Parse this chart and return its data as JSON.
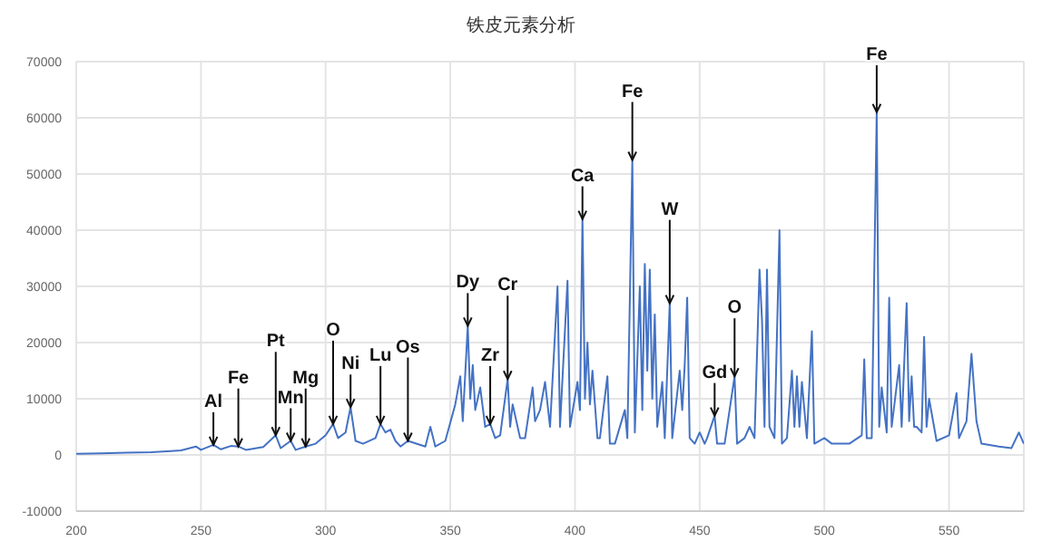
{
  "chart_data": {
    "type": "line",
    "title": "铁皮元素分析",
    "color": "#4472c4",
    "grid": true,
    "marker": "none",
    "line_style": "solid",
    "xlim": [
      200,
      580
    ],
    "xticks": [
      200,
      250,
      300,
      350,
      400,
      450,
      500,
      550
    ],
    "ylim": [
      -10000,
      70000
    ],
    "yticks": [
      -10000,
      0,
      10000,
      20000,
      30000,
      40000,
      50000,
      60000,
      70000
    ],
    "x": [
      200,
      210,
      220,
      230,
      238,
      242,
      248,
      250,
      255,
      258,
      262,
      265,
      268,
      275,
      280,
      282,
      286,
      288,
      292,
      296,
      300,
      303,
      305,
      308,
      310,
      312,
      315,
      320,
      322,
      324,
      326,
      328,
      330,
      333,
      340,
      342,
      344,
      348,
      352,
      354,
      355,
      357,
      358,
      359,
      360,
      362,
      364,
      366,
      368,
      370,
      373,
      374,
      375,
      378,
      380,
      383,
      384,
      386,
      388,
      390,
      393,
      394,
      397,
      398,
      401,
      402,
      403,
      404,
      405,
      406,
      407,
      409,
      410,
      413,
      414,
      416,
      420,
      421,
      423,
      424,
      426,
      427,
      428,
      429,
      430,
      431,
      432,
      433,
      435,
      436,
      438,
      439,
      442,
      443,
      444,
      445,
      446,
      448,
      450,
      452,
      453,
      456,
      457,
      460,
      464,
      465,
      468,
      470,
      472,
      474,
      475,
      476,
      477,
      478,
      480,
      482,
      483,
      485,
      487,
      488,
      489,
      490,
      491,
      493,
      495,
      496,
      500,
      503,
      505,
      510,
      515,
      516,
      517,
      519,
      521,
      522,
      523,
      525,
      526,
      527,
      530,
      531,
      533,
      534,
      535,
      536,
      537,
      539,
      540,
      541,
      542,
      545,
      550,
      553,
      554,
      557,
      559,
      561,
      563,
      570,
      575,
      578,
      580
    ],
    "values": [
      200,
      300,
      400,
      500,
      700,
      800,
      1500,
      900,
      1800,
      1000,
      1600,
      1500,
      900,
      1400,
      3500,
      1200,
      2500,
      900,
      1500,
      2000,
      3500,
      5500,
      3000,
      4000,
      8500,
      2500,
      2000,
      3000,
      5500,
      4000,
      4500,
      2500,
      1500,
      2500,
      1500,
      5000,
      1500,
      2500,
      9000,
      14000,
      6000,
      23000,
      10000,
      16000,
      8000,
      12000,
      5000,
      5500,
      3000,
      3500,
      13500,
      5000,
      9000,
      3000,
      3000,
      12000,
      6000,
      8000,
      13000,
      5000,
      30000,
      5000,
      31000,
      5000,
      13000,
      8000,
      42000,
      10000,
      20000,
      9000,
      15000,
      3000,
      3000,
      14000,
      2000,
      2000,
      8000,
      3000,
      52500,
      4000,
      30000,
      8000,
      34000,
      15000,
      33000,
      10000,
      25000,
      5000,
      13000,
      3000,
      27000,
      3000,
      15000,
      8000,
      16000,
      28000,
      3000,
      2000,
      4000,
      2000,
      3000,
      7000,
      2000,
      2000,
      14000,
      2000,
      3000,
      5000,
      3000,
      33000,
      24000,
      5000,
      33000,
      5000,
      3000,
      40000,
      2000,
      3000,
      15000,
      5000,
      14000,
      5000,
      13000,
      3000,
      22000,
      2000,
      3000,
      2000,
      2000,
      2000,
      3500,
      17000,
      3000,
      3000,
      61000,
      5000,
      12000,
      4000,
      28000,
      5000,
      16000,
      5000,
      27000,
      6000,
      14000,
      5000,
      5000,
      4000,
      21000,
      5000,
      10000,
      2500,
      3500,
      11000,
      3000,
      6000,
      18000,
      6000,
      2000,
      1500,
      1200,
      4000,
      2000
    ],
    "annotations": [
      {
        "text": "Al",
        "x": 255,
        "y": 1800
      },
      {
        "text": "Fe",
        "x": 265,
        "y": 1500
      },
      {
        "text": "Pt",
        "x": 280,
        "y": 3500
      },
      {
        "text": "Mn",
        "x": 286,
        "y": 2500
      },
      {
        "text": "Mg",
        "x": 292,
        "y": 1500
      },
      {
        "text": "O",
        "x": 303,
        "y": 5500
      },
      {
        "text": "Ni",
        "x": 310,
        "y": 8500
      },
      {
        "text": "Lu",
        "x": 322,
        "y": 5500
      },
      {
        "text": "Os",
        "x": 333,
        "y": 2500
      },
      {
        "text": "Dy",
        "x": 357,
        "y": 23000
      },
      {
        "text": "Zr",
        "x": 366,
        "y": 5500
      },
      {
        "text": "Cr",
        "x": 373,
        "y": 13500
      },
      {
        "text": "Ca",
        "x": 403,
        "y": 42000
      },
      {
        "text": "Fe",
        "x": 423,
        "y": 52500
      },
      {
        "text": "W",
        "x": 438,
        "y": 27000
      },
      {
        "text": "Gd",
        "x": 456,
        "y": 7000
      },
      {
        "text": "O",
        "x": 464,
        "y": 14000
      },
      {
        "text": "Fe",
        "x": 521,
        "y": 61000
      }
    ]
  }
}
